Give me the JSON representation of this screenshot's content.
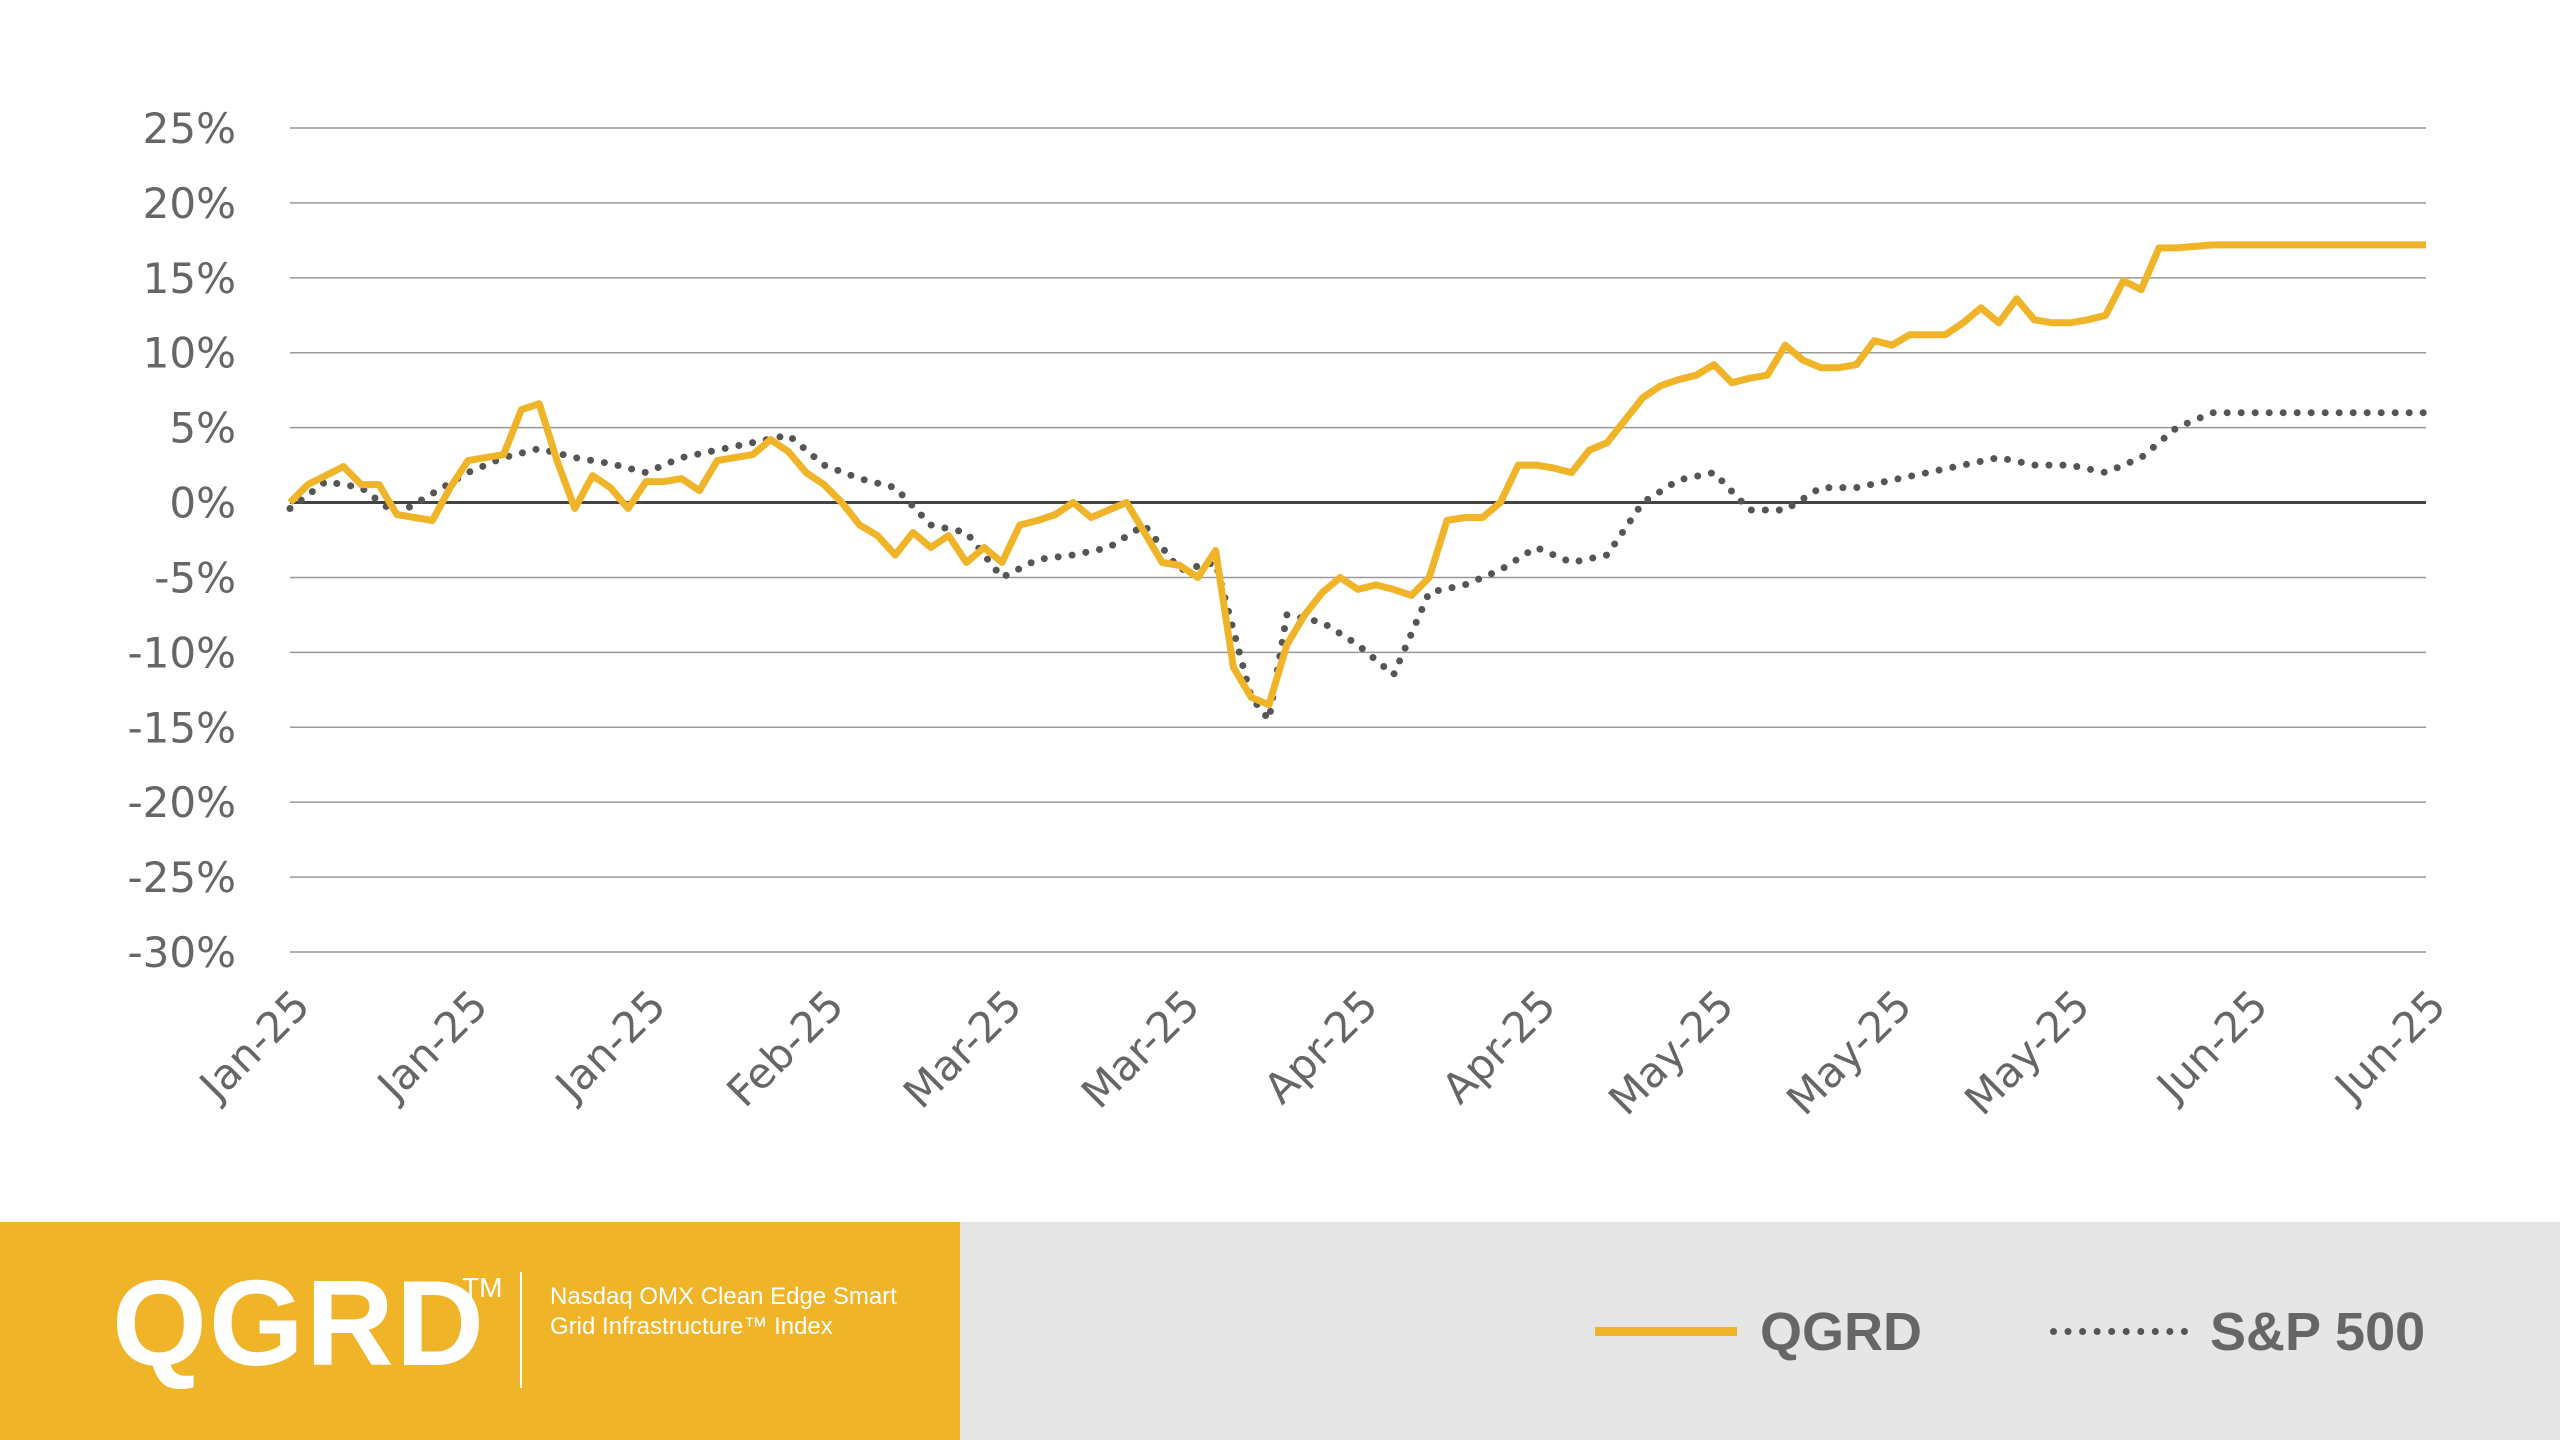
{
  "chart_data": {
    "type": "line",
    "x_tick_labels": [
      "Jan-25",
      "Jan-25",
      "Jan-25",
      "Feb-25",
      "Mar-25",
      "Mar-25",
      "Apr-25",
      "Apr-25",
      "May-25",
      "May-25",
      "May-25",
      "Jun-25",
      "Jun-25"
    ],
    "y_tick_labels": [
      "25%",
      "20%",
      "15%",
      "10%",
      "5%",
      "0%",
      "-5%",
      "-10%",
      "-15%",
      "-20%",
      "-25%",
      "-30%"
    ],
    "ylim": [
      -30,
      25
    ],
    "xlim": [
      0,
      120
    ],
    "y_step": 5,
    "grid": true,
    "zero_line": true,
    "series": [
      {
        "name": "QGRD",
        "color": "#F0B429",
        "style": "solid",
        "x": [
          0,
          1,
          2,
          3,
          4,
          5,
          6,
          7,
          8,
          9,
          10,
          11,
          12,
          13,
          14,
          15,
          16,
          17,
          18,
          19,
          20,
          21,
          22,
          23,
          24,
          25,
          26,
          27,
          28,
          29,
          30,
          31,
          32,
          33,
          34,
          35,
          36,
          37,
          38,
          39,
          40,
          41,
          42,
          43,
          44,
          45,
          46,
          47,
          48,
          49,
          50,
          51,
          52,
          53,
          54,
          55,
          56,
          57,
          58,
          59,
          60,
          61,
          62,
          63,
          64,
          65,
          66,
          67,
          68,
          69,
          70,
          71,
          72,
          73,
          74,
          75,
          76,
          77,
          78,
          79,
          80,
          81,
          82,
          83,
          84,
          85,
          86,
          87,
          88,
          89,
          90,
          91,
          92,
          93,
          94,
          95,
          96,
          97,
          98,
          99,
          100,
          101,
          102,
          103,
          104,
          105,
          106,
          107,
          108,
          109,
          110,
          111,
          112,
          113,
          114,
          115,
          116,
          117,
          118,
          119,
          120
        ],
        "values": [
          0,
          1.2,
          1.8,
          2.4,
          1.2,
          1.2,
          -0.8,
          -1,
          -1.2,
          1,
          2.8,
          3.0,
          3.2,
          6.2,
          6.6,
          2.8,
          -0.4,
          1.8,
          1.0,
          -0.4,
          1.4,
          1.4,
          1.6,
          0.8,
          2.8,
          3.0,
          3.2,
          4.2,
          3.4,
          2.0,
          1.2,
          0,
          -1.5,
          -2.2,
          -3.5,
          -2.0,
          -3.0,
          -2.2,
          -4.0,
          -3.0,
          -4.0,
          -1.5,
          -1.2,
          -0.8,
          0,
          -1.0,
          -0.5,
          0,
          -2.0,
          -4.0,
          -4.2,
          -5.0,
          -3.2,
          -11.0,
          -13.0,
          -13.5,
          -9.5,
          -7.5,
          -6.0,
          -5.0,
          -5.8,
          -5.5,
          -5.8,
          -6.2,
          -5.0,
          -1.2,
          -1.0,
          -1.0,
          0,
          2.5,
          2.5,
          2.3,
          2.0,
          3.5,
          4.0,
          5.5,
          7.0,
          7.8,
          8.2,
          8.5,
          9.2,
          8.0,
          8.3,
          8.5,
          10.5,
          9.5,
          9.0,
          9.0,
          9.2,
          10.8,
          10.5,
          11.2,
          11.2,
          11.2,
          12.0,
          13.0,
          12.0,
          13.6,
          12.2,
          12.0,
          12.0,
          12.2,
          12.5,
          14.8,
          14.2,
          17.0,
          17.0,
          17.1,
          17.2,
          17.2,
          17.2,
          17.2,
          17.2,
          17.2,
          17.2,
          17.2,
          17.2,
          17.2,
          17.2,
          17.2,
          17.2
        ]
      },
      {
        "name": "S&P 500",
        "color": "#555555",
        "style": "dotted",
        "x": [
          0,
          2,
          4,
          6,
          8,
          10,
          12,
          14,
          16,
          18,
          20,
          22,
          24,
          26,
          28,
          30,
          32,
          34,
          36,
          38,
          40,
          42,
          44,
          46,
          48,
          50,
          52,
          54,
          55,
          56,
          58,
          60,
          62,
          64,
          66,
          68,
          70,
          72,
          74,
          76,
          78,
          80,
          82,
          84,
          86,
          88,
          90,
          92,
          94,
          96,
          98,
          100,
          102,
          104,
          106,
          108,
          110,
          112,
          114,
          116,
          118,
          120
        ],
        "values": [
          -0.4,
          1.4,
          1.0,
          -0.8,
          0.6,
          2.0,
          3.0,
          3.6,
          3.0,
          2.6,
          2.0,
          3.0,
          3.5,
          4.0,
          4.5,
          2.5,
          1.6,
          1.0,
          -1.5,
          -2.0,
          -5.0,
          -3.8,
          -3.5,
          -3.0,
          -1.5,
          -4.5,
          -4.0,
          -13.0,
          -14.5,
          -7.5,
          -8.0,
          -9.5,
          -11.5,
          -6.0,
          -5.5,
          -4.5,
          -3.0,
          -4.0,
          -3.5,
          0,
          1.5,
          2.0,
          -0.5,
          -0.5,
          1.0,
          1.0,
          1.5,
          2.0,
          2.5,
          3.0,
          2.5,
          2.5,
          2.0,
          3.0,
          5.0,
          6.0,
          6.0,
          6.0,
          6.0,
          6.0,
          6.0,
          6.0
        ]
      }
    ]
  },
  "footer": {
    "brand": "QGRD",
    "trademark": "TM",
    "description": "Nasdaq OMX Clean Edge Smart Grid Infrastructure™ Index",
    "legend": [
      {
        "label": "QGRD"
      },
      {
        "label": "S&P 500"
      }
    ]
  }
}
